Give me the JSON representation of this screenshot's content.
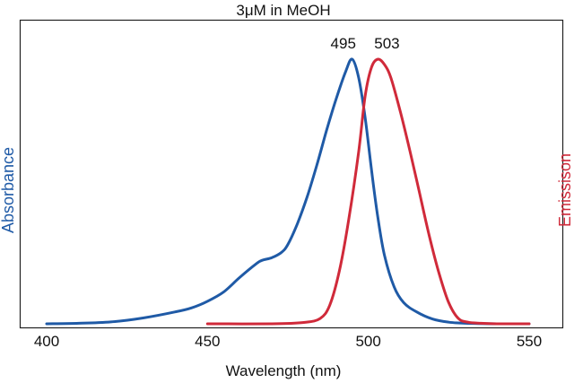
{
  "chart_data": {
    "type": "line",
    "title": "3μM in MeOH",
    "xlabel": "Wavelength (nm)",
    "ylabel_left": "Absorbance",
    "ylabel_right": "Emissison",
    "xlim": [
      400,
      550
    ],
    "ylim": [
      0,
      1
    ],
    "x_ticks": [
      "400",
      "450",
      "500",
      "550"
    ],
    "y_ticks_shown": false,
    "grid": false,
    "colors": {
      "absorbance": "#1f5aa6",
      "emission": "#d02a3a"
    },
    "peak_labels": [
      {
        "text": "495",
        "x": 495
      },
      {
        "text": "503",
        "x": 503
      }
    ],
    "series": [
      {
        "name": "Absorbance",
        "axis": "left",
        "x": [
          400,
          410,
          420,
          430,
          440,
          445,
          450,
          455,
          460,
          465,
          467,
          470,
          473,
          475,
          478,
          481,
          484,
          487,
          490,
          493,
          495,
          497,
          499,
          501,
          503,
          505,
          508,
          511,
          515,
          520,
          525,
          530,
          540,
          550
        ],
        "y": [
          0.0,
          0.002,
          0.007,
          0.022,
          0.045,
          0.06,
          0.085,
          0.12,
          0.175,
          0.225,
          0.24,
          0.25,
          0.27,
          0.3,
          0.38,
          0.48,
          0.6,
          0.73,
          0.85,
          0.955,
          1.0,
          0.93,
          0.78,
          0.58,
          0.4,
          0.26,
          0.14,
          0.08,
          0.045,
          0.018,
          0.006,
          0.002,
          0.0,
          0.0
        ]
      },
      {
        "name": "Emissison",
        "axis": "right",
        "x": [
          450,
          470,
          480,
          485,
          488,
          491,
          494,
          497,
          499,
          501,
          503,
          505,
          507,
          510,
          513,
          516,
          519,
          522,
          525,
          528,
          531,
          535,
          540,
          550
        ],
        "y": [
          0.0,
          0.0,
          0.005,
          0.02,
          0.07,
          0.2,
          0.4,
          0.65,
          0.86,
          0.97,
          1.0,
          0.98,
          0.93,
          0.8,
          0.65,
          0.49,
          0.33,
          0.19,
          0.08,
          0.02,
          0.006,
          0.002,
          0.0,
          0.0
        ]
      }
    ]
  }
}
